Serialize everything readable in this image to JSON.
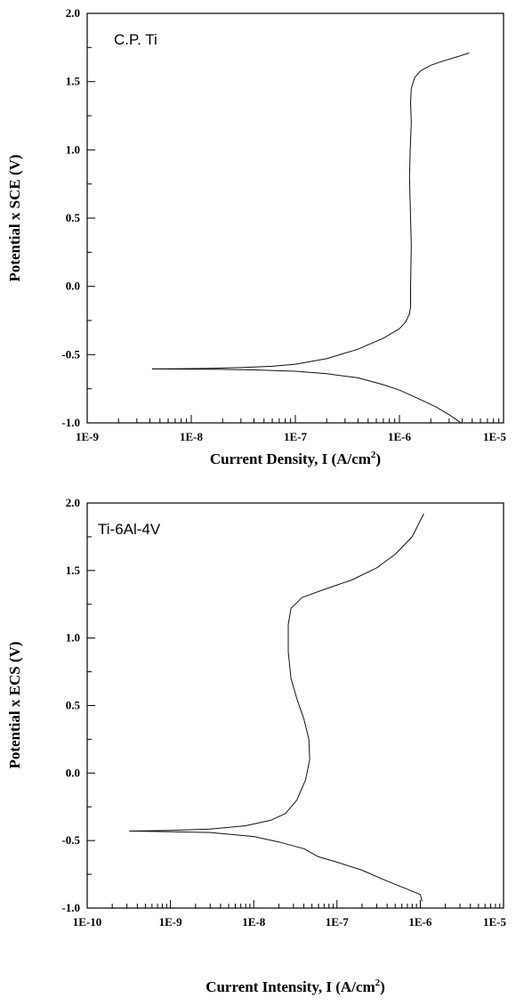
{
  "chart_data": [
    {
      "type": "line",
      "annotation": "C.P. Ti",
      "xlabel": "Current Density, I (A/cm",
      "xlabel_sup": "2",
      "xlabel_tail": ")",
      "ylabel": "Potential x SCE (V)",
      "xscale": "log",
      "xlim": [
        1e-09,
        1e-05
      ],
      "ylim": [
        -1.0,
        2.0
      ],
      "xticks": [
        1e-09,
        1e-08,
        1e-07,
        1e-06,
        1e-05
      ],
      "xtick_labels": [
        "1E-9",
        "1E-8",
        "1E-7",
        "1E-6",
        "1E-5"
      ],
      "yticks": [
        -1.0,
        -0.5,
        0.0,
        0.5,
        1.0,
        1.5,
        2.0
      ],
      "ytick_labels": [
        "-1.0",
        "-0.5",
        "0.0",
        "0.5",
        "1.0",
        "1.5",
        "2.0"
      ],
      "grid": false,
      "series": [
        {
          "segment": "cathodic",
          "x": [
            4.2e-09,
            8e-09,
            2e-08,
            4e-08,
            1e-07,
            2e-07,
            4e-07,
            7e-07,
            1e-06,
            1.5e-06,
            2.2e-06,
            3e-06,
            3.5e-06,
            3.9e-06
          ],
          "y": [
            -0.605,
            -0.606,
            -0.608,
            -0.612,
            -0.622,
            -0.64,
            -0.67,
            -0.72,
            -0.76,
            -0.82,
            -0.88,
            -0.94,
            -0.975,
            -1.0
          ]
        },
        {
          "segment": "anodic",
          "x": [
            4.2e-09,
            8e-09,
            1.5e-08,
            3e-08,
            6e-08,
            1e-07,
            2e-07,
            4e-07,
            7e-07,
            1e-06,
            1.15e-06,
            1.25e-06,
            1.28e-06,
            1.28e-06,
            1.3e-06,
            1.28e-06,
            1.25e-06,
            1.27e-06,
            1.3e-06,
            1.28e-06,
            1.3e-06,
            1.4e-06,
            1.6e-06,
            2e-06,
            2.6e-06,
            3.5e-06,
            4.7e-06
          ],
          "y": [
            -0.605,
            -0.603,
            -0.6,
            -0.595,
            -0.585,
            -0.57,
            -0.53,
            -0.46,
            -0.38,
            -0.31,
            -0.26,
            -0.2,
            -0.15,
            0.0,
            0.3,
            0.5,
            0.8,
            1.0,
            1.2,
            1.35,
            1.45,
            1.53,
            1.58,
            1.62,
            1.65,
            1.68,
            1.71
          ]
        }
      ]
    },
    {
      "type": "line",
      "annotation": "Ti-6Al-4V",
      "xlabel": "Current Intensity, I (A/cm",
      "xlabel_sup": "2",
      "xlabel_tail": ")",
      "ylabel": "Potential x ECS (V)",
      "xscale": "log",
      "xlim": [
        1e-10,
        1e-05
      ],
      "ylim": [
        -1.0,
        2.0
      ],
      "xticks": [
        1e-10,
        1e-09,
        1e-08,
        1e-07,
        1e-06,
        1e-05
      ],
      "xtick_labels": [
        "1E-10",
        "1E-9",
        "1E-8",
        "1E-7",
        "1E-6",
        "1E-5"
      ],
      "yticks": [
        -1.0,
        -0.5,
        0.0,
        0.5,
        1.0,
        1.5,
        2.0
      ],
      "ytick_labels": [
        "-1.0",
        "-0.5",
        "0.0",
        "0.5",
        "1.0",
        "1.5",
        "2.0"
      ],
      "grid": false,
      "series": [
        {
          "segment": "cathodic",
          "x": [
            3.2e-10,
            1e-09,
            3e-09,
            1e-08,
            2e-08,
            4e-08,
            6e-08,
            1e-07,
            2e-07,
            4e-07,
            7e-07,
            1e-06,
            1.05e-06
          ],
          "y": [
            -0.43,
            -0.435,
            -0.44,
            -0.47,
            -0.51,
            -0.56,
            -0.62,
            -0.66,
            -0.72,
            -0.8,
            -0.86,
            -0.9,
            -0.95
          ]
        },
        {
          "segment": "anodic",
          "x": [
            3.2e-10,
            1e-09,
            3e-09,
            8e-09,
            1.6e-08,
            2.4e-08,
            3.3e-08,
            4.2e-08,
            4.7e-08,
            4.6e-08,
            4e-08,
            3.3e-08,
            2.8e-08,
            2.6e-08,
            2.6e-08,
            2.8e-08,
            3.8e-08,
            7e-08,
            1.5e-07,
            3e-07,
            5e-07,
            8e-07,
            1.1e-06
          ],
          "y": [
            -0.43,
            -0.425,
            -0.415,
            -0.39,
            -0.35,
            -0.3,
            -0.2,
            -0.05,
            0.1,
            0.25,
            0.4,
            0.55,
            0.7,
            0.9,
            1.1,
            1.22,
            1.3,
            1.36,
            1.43,
            1.52,
            1.62,
            1.75,
            1.92
          ]
        }
      ]
    }
  ]
}
